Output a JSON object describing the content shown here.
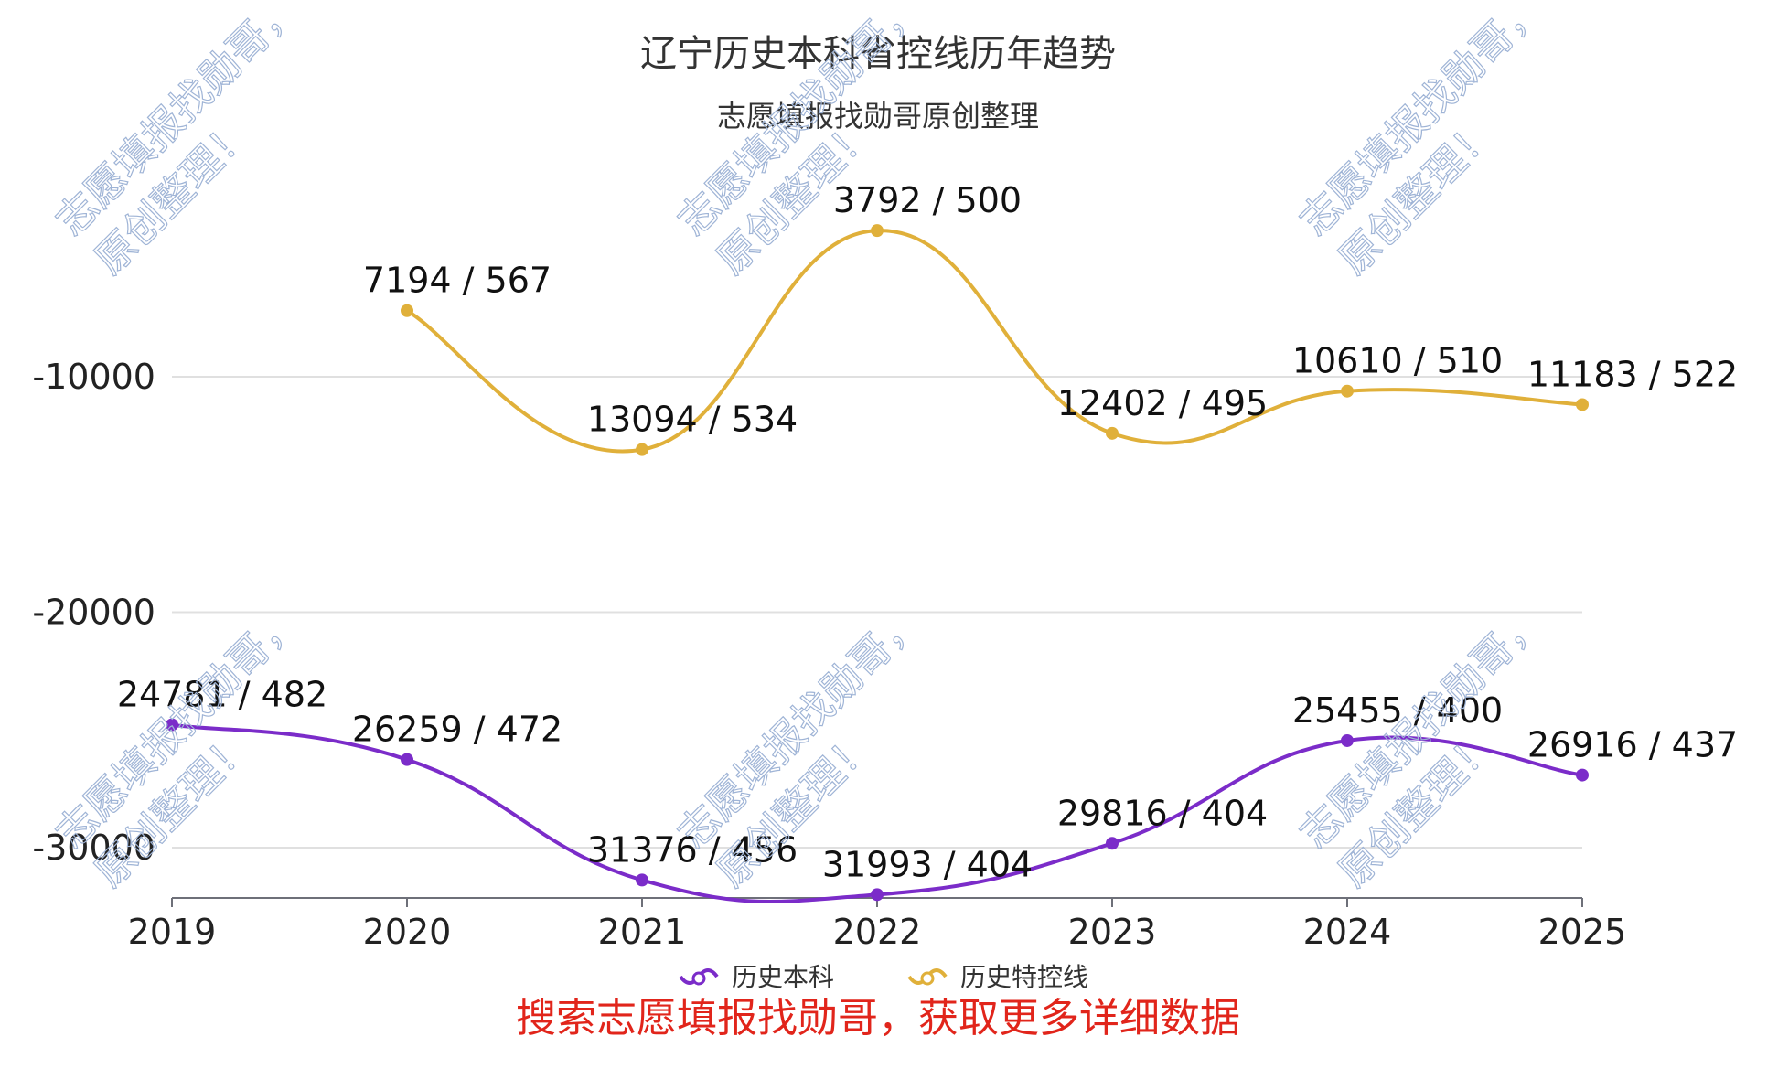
{
  "chart_data": {
    "type": "line",
    "title": "辽宁历史本科省控线历年趋势",
    "subtitle": "志愿填报找勋哥原创整理",
    "categories": [
      "2019",
      "2020",
      "2021",
      "2022",
      "2023",
      "2024",
      "2025"
    ],
    "y_axis": {
      "range": [
        -34000,
        0
      ],
      "ticks": [
        -10000,
        -20000,
        -30000
      ],
      "grid": true
    },
    "series": [
      {
        "name": "历史本科",
        "color": "#7b2cc9",
        "values": [
          -24781,
          -26259,
          -31376,
          -31993,
          -29816,
          -25455,
          -26916
        ],
        "labels": [
          "24781 / 482",
          "26259 / 472",
          "31376 / 456",
          "31993 / 404",
          "29816 / 404",
          "25455 / 400",
          "26916 / 437"
        ]
      },
      {
        "name": "历史特控线",
        "color": "#e0b03a",
        "values": [
          null,
          -7194,
          -13094,
          -3792,
          -12402,
          -10610,
          -11183
        ],
        "labels": [
          null,
          "7194 / 567",
          "13094 / 534",
          "3792 / 500",
          "12402 / 495",
          "10610 / 510",
          "11183 / 522"
        ]
      }
    ],
    "legend_position": "bottom",
    "footer_note": "搜索志愿填报找勋哥，获取更多详细数据",
    "footer_color": "#e1251b",
    "watermark_lines": [
      "志愿填报找勋哥，",
      "原创整理！"
    ]
  }
}
